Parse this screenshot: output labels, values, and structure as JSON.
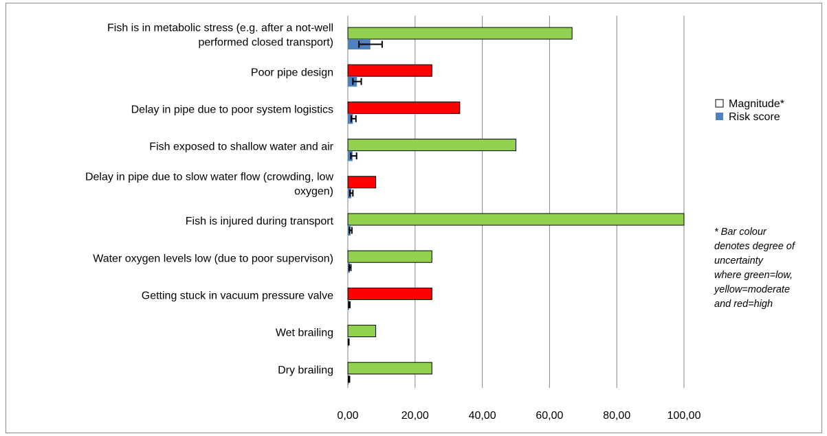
{
  "chart_data": {
    "type": "bar",
    "orientation": "horizontal",
    "categories": [
      "Fish is in metabolic stress (e.g. after a not-well performed closed transport)",
      "Poor pipe design",
      "Delay in pipe due to poor system logistics",
      "Fish exposed to shallow water and air",
      "Delay in pipe due to slow water flow (crowding, low oxygen)",
      "Fish is injured during transport",
      "Water oxygen levels low (due to poor supervison)",
      "Getting stuck in vacuum pressure valve",
      "Wet brailing",
      "Dry brailing"
    ],
    "category_lines": [
      [
        "Fish is in metabolic stress (e.g. after a not-well",
        "performed closed transport)"
      ],
      [
        "Poor pipe design"
      ],
      [
        "Delay in pipe due to poor system logistics"
      ],
      [
        "Fish exposed to shallow water and air"
      ],
      [
        "Delay in pipe due to slow water flow (crowding, low",
        "oxygen)"
      ],
      [
        "Fish is injured during transport"
      ],
      [
        "Water oxygen levels low (due to poor supervison)"
      ],
      [
        "Getting stuck in vacuum pressure valve"
      ],
      [
        "Wet brailing"
      ],
      [
        "Dry brailing"
      ]
    ],
    "series": [
      {
        "name": "Magnitude*",
        "values": [
          66.7,
          25,
          33.3,
          50,
          8.3,
          100,
          25,
          25,
          8.3,
          25
        ],
        "uncertainty": [
          "low",
          "high",
          "high",
          "low",
          "high",
          "low",
          "low",
          "high",
          "low",
          "low"
        ]
      },
      {
        "name": "Risk score",
        "values": [
          6.7,
          2.7,
          1.5,
          1.4,
          1.0,
          0.8,
          0.6,
          0.4,
          0.2,
          0.3
        ],
        "error_low": [
          3.3,
          1.5,
          1.0,
          0.9,
          0.6,
          0.5,
          0.4,
          0.3,
          0.15,
          0.2
        ],
        "error_high": [
          10.2,
          4.0,
          2.4,
          2.6,
          1.5,
          1.2,
          0.9,
          0.6,
          0.3,
          0.5
        ]
      }
    ],
    "uncertainty_colors": {
      "low": "#92d050",
      "moderate": "#ffff00",
      "high": "#ff0000"
    },
    "risk_color": "#4f81bd",
    "x_ticks": [
      "0,00",
      "20,00",
      "40,00",
      "60,00",
      "80,00",
      "100,00"
    ],
    "xlim": [
      0,
      100
    ],
    "grid": "vertical",
    "legend_position": "right",
    "title": "",
    "xlabel": "",
    "ylabel": ""
  },
  "note_lines": [
    "* Bar colour",
    "denotes degree of",
    "uncertainty",
    "where green=low,",
    "yellow=moderate",
    "and red=high"
  ]
}
